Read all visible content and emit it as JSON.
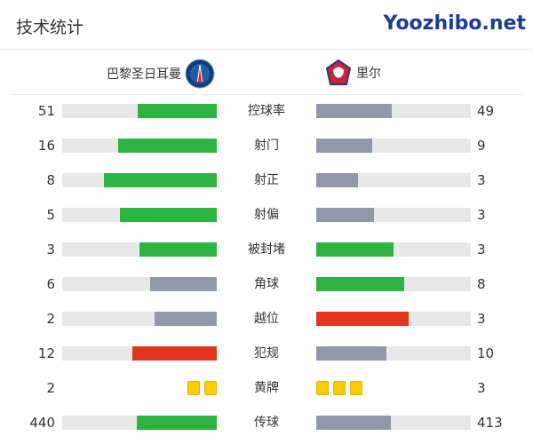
{
  "title": "技术统计",
  "home": {
    "name": "巴黎圣日耳曼"
  },
  "away": {
    "name": "里尔"
  },
  "colors": {
    "green": "#2db342",
    "gray": "#9099aa",
    "red": "#e0361c",
    "yellow": "#ffcc00"
  },
  "stats": [
    {
      "label": "控球率",
      "home": "51",
      "away": "49",
      "home_color": "green",
      "away_color": "gray"
    },
    {
      "label": "射门",
      "home": "16",
      "away": "9",
      "home_color": "green",
      "away_color": "gray"
    },
    {
      "label": "射正",
      "home": "8",
      "away": "3",
      "home_color": "green",
      "away_color": "gray"
    },
    {
      "label": "射偏",
      "home": "5",
      "away": "3",
      "home_color": "green",
      "away_color": "gray"
    },
    {
      "label": "被封堵",
      "home": "3",
      "away": "3",
      "home_color": "green",
      "away_color": "green"
    },
    {
      "label": "角球",
      "home": "6",
      "away": "8",
      "home_color": "gray",
      "away_color": "green"
    },
    {
      "label": "越位",
      "home": "2",
      "away": "3",
      "home_color": "gray",
      "away_color": "red"
    },
    {
      "label": "犯规",
      "home": "12",
      "away": "10",
      "home_color": "red",
      "away_color": "gray"
    },
    {
      "label": "黄牌",
      "home": "2",
      "away": "3",
      "type": "cards"
    },
    {
      "label": "传球",
      "home": "440",
      "away": "413",
      "home_color": "green",
      "away_color": "gray"
    }
  ],
  "watermark": "Yoozhibo.net"
}
